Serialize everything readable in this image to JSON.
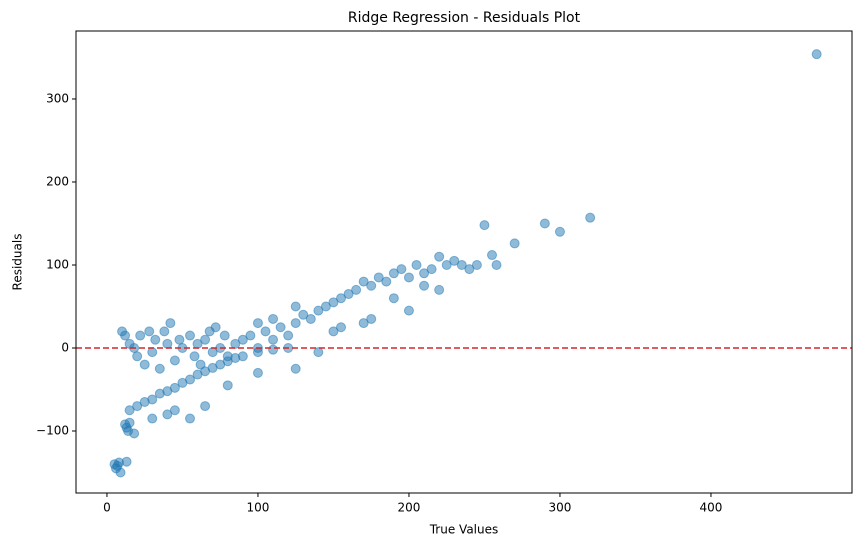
{
  "chart_data": {
    "type": "scatter",
    "title": "Ridge Regression - Residuals Plot",
    "xlabel": "True Values",
    "ylabel": "Residuals",
    "color": "#1f77b4",
    "hline": 0,
    "hline_color": "#d62728",
    "xlim": [
      -20.5,
      493.4
    ],
    "ylim": [
      -174.7,
      381.9
    ],
    "xticks": [
      0,
      100,
      200,
      300,
      400
    ],
    "yticks": [
      {
        "value": -100,
        "label": "−100"
      },
      0,
      100,
      200,
      300
    ],
    "x": [
      5,
      7,
      8,
      9,
      6,
      13,
      12,
      13,
      14,
      15,
      18,
      15,
      20,
      25,
      30,
      35,
      40,
      45,
      50,
      55,
      60,
      65,
      70,
      75,
      80,
      85,
      90,
      100,
      110,
      120,
      30,
      40,
      45,
      55,
      65,
      80,
      10,
      12,
      15,
      18,
      20,
      22,
      25,
      28,
      30,
      32,
      35,
      38,
      40,
      42,
      45,
      48,
      50,
      55,
      58,
      60,
      62,
      65,
      68,
      70,
      72,
      75,
      78,
      80,
      85,
      90,
      95,
      100,
      100,
      105,
      110,
      110,
      115,
      120,
      125,
      125,
      130,
      135,
      140,
      145,
      150,
      155,
      160,
      165,
      170,
      175,
      180,
      185,
      190,
      195,
      200,
      205,
      210,
      215,
      220,
      225,
      230,
      235,
      240,
      245,
      150,
      155,
      170,
      175,
      190,
      200,
      210,
      220,
      140,
      125,
      100,
      250,
      255,
      270,
      290,
      300,
      320,
      470,
      258
    ],
    "y": [
      -140,
      -142,
      -138,
      -150,
      -145,
      -137,
      -92,
      -96,
      -100,
      -90,
      -103,
      -75,
      -70,
      -65,
      -62,
      -55,
      -52,
      -48,
      -42,
      -38,
      -32,
      -28,
      -24,
      -20,
      -16,
      -12,
      -10,
      -5,
      -2,
      0,
      -85,
      -80,
      -75,
      -85,
      -70,
      -45,
      20,
      15,
      5,
      0,
      -10,
      15,
      -20,
      20,
      -5,
      10,
      -25,
      20,
      5,
      30,
      -15,
      10,
      0,
      15,
      -10,
      5,
      -20,
      10,
      20,
      -5,
      25,
      0,
      15,
      -10,
      5,
      10,
      15,
      0,
      30,
      20,
      10,
      35,
      25,
      15,
      50,
      30,
      40,
      35,
      45,
      50,
      55,
      60,
      65,
      70,
      80,
      75,
      85,
      80,
      90,
      95,
      85,
      100,
      90,
      95,
      110,
      100,
      105,
      100,
      95,
      100,
      20,
      25,
      30,
      35,
      60,
      45,
      75,
      70,
      -5,
      -25,
      -30,
      148,
      112,
      126,
      150,
      140,
      157,
      354,
      100
    ]
  }
}
